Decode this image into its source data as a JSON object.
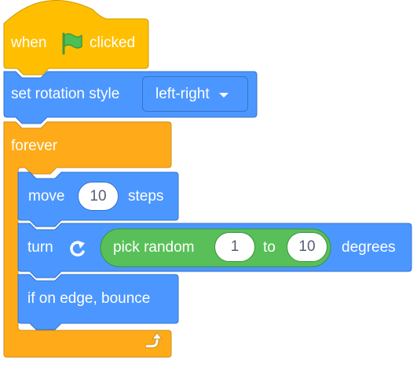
{
  "colors": {
    "events": "#ffbf00",
    "events_border": "#cc9900",
    "motion": "#4c97ff",
    "motion_border": "#3373cc",
    "control": "#ffab19",
    "control_border": "#cf8b17",
    "operators": "#59c059",
    "operators_border": "#389438",
    "flag": "#4cbf56"
  },
  "hat_block": {
    "label_when": "when",
    "flag_icon": "green-flag-icon",
    "label_clicked": "clicked"
  },
  "rotation_block": {
    "label": "set rotation style",
    "dropdown_value": "left-right"
  },
  "forever_block": {
    "label": "forever",
    "loop_icon": "loop-arrow-icon"
  },
  "move_block": {
    "label_move": "move",
    "steps_value": "10",
    "label_steps": "steps"
  },
  "turn_block": {
    "label_turn": "turn",
    "direction_icon": "rotate-right-icon",
    "random": {
      "label": "pick random",
      "from_value": "1",
      "label_to": "to",
      "to_value": "10"
    },
    "label_degrees": "degrees"
  },
  "bounce_block": {
    "label": "if on edge, bounce"
  }
}
